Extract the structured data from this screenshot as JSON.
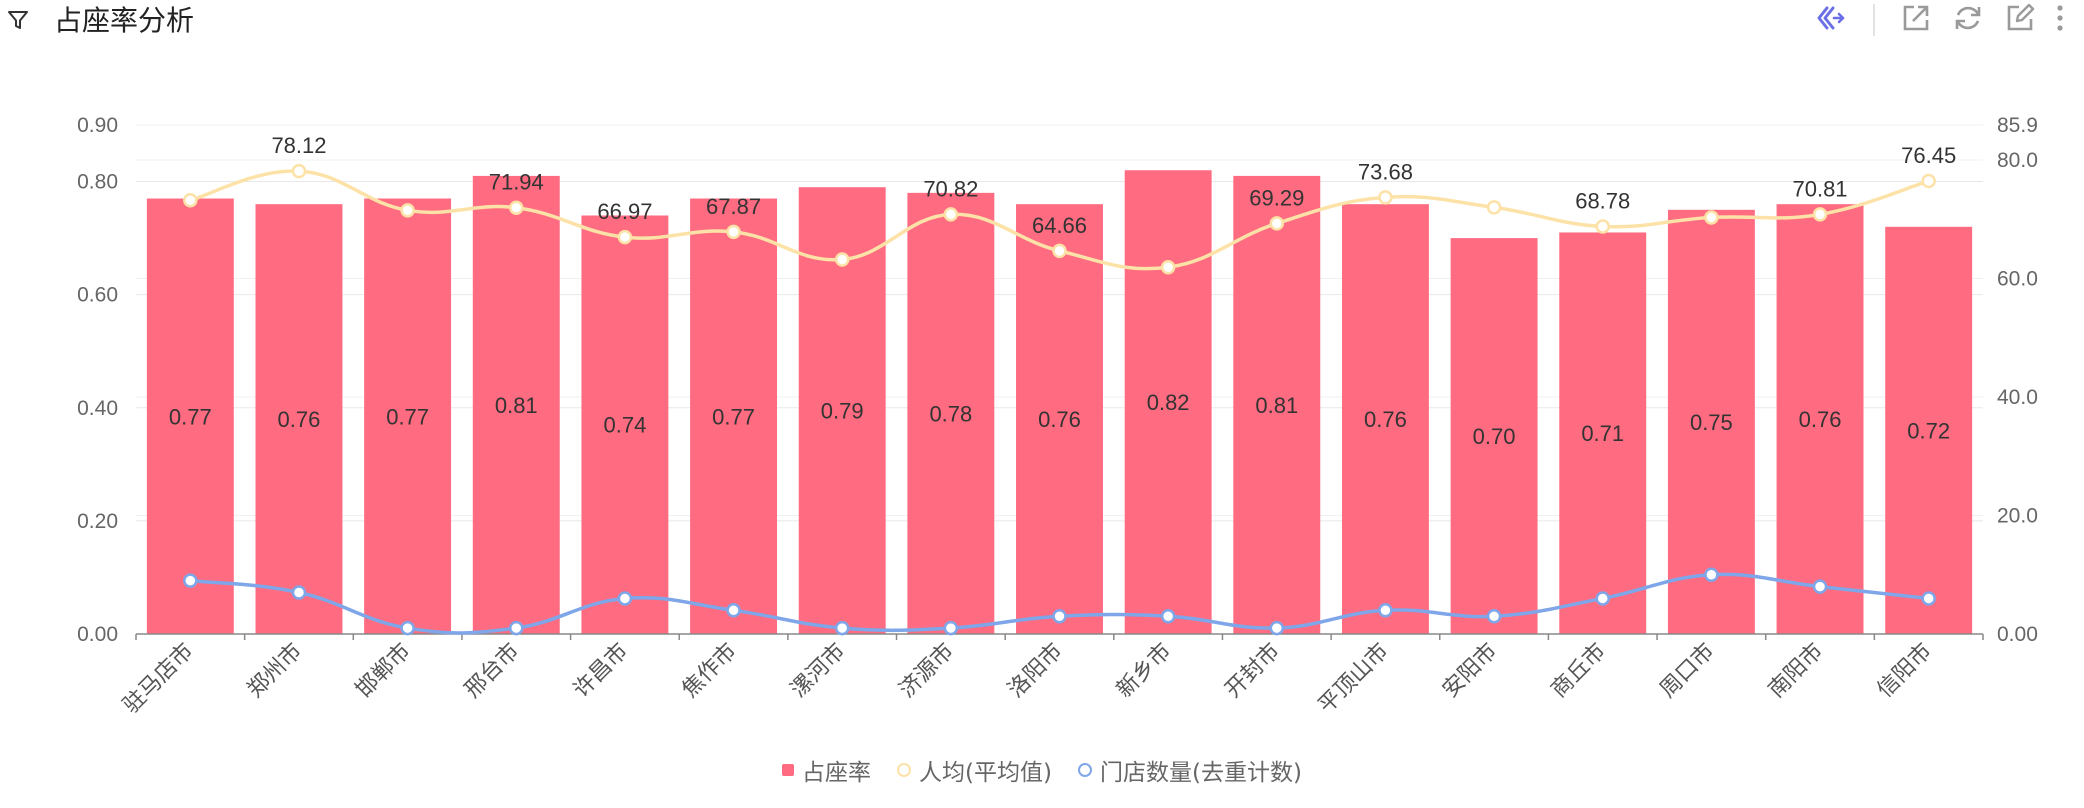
{
  "header": {
    "title": "占座率分析",
    "icons": [
      "filter-icon",
      "ai-assistant-icon",
      "export-icon",
      "refresh-icon",
      "edit-icon",
      "more-icon"
    ]
  },
  "colors": {
    "bar": "#ff6b81",
    "avg": "#fde2a8",
    "stores": "#7ea6e8",
    "ai": "#6b6fe6",
    "tools": "#9a9a9a"
  },
  "chart_data": {
    "type": "bar",
    "categories": [
      "驻马店市",
      "郑州市",
      "邯郸市",
      "邢台市",
      "许昌市",
      "焦作市",
      "漯河市",
      "济源市",
      "洛阳市",
      "新乡市",
      "开封市",
      "平顶山市",
      "安阳市",
      "商丘市",
      "周口市",
      "南阳市",
      "信阳市"
    ],
    "series": [
      {
        "name": "占座率",
        "type": "bar",
        "axis": "left",
        "values": [
          0.77,
          0.76,
          0.77,
          0.81,
          0.74,
          0.77,
          0.79,
          0.78,
          0.76,
          0.82,
          0.81,
          0.76,
          0.7,
          0.71,
          0.75,
          0.76,
          0.72
        ],
        "labels": [
          "0.77",
          "0.76",
          "0.77",
          "0.81",
          "0.74",
          "0.77",
          "0.79",
          "0.78",
          "0.76",
          "0.82",
          "0.81",
          "0.76",
          "0.70",
          "0.71",
          "0.75",
          "0.76",
          "0.72"
        ]
      },
      {
        "name": "人均(平均值)",
        "type": "line",
        "axis": "right",
        "values": [
          73.2,
          78.12,
          71.5,
          71.94,
          66.97,
          67.87,
          63.2,
          70.82,
          64.66,
          61.9,
          69.29,
          73.68,
          72.0,
          68.78,
          70.3,
          70.81,
          76.45
        ],
        "labels": [
          "",
          "78.12",
          "",
          "71.94",
          "66.97",
          "67.87",
          "",
          "70.82",
          "64.66",
          "",
          "69.29",
          "73.68",
          "",
          "68.78",
          "",
          "70.81",
          "76.45"
        ]
      },
      {
        "name": "门店数量(去重计数)",
        "type": "line",
        "axis": "right",
        "values": [
          9,
          7,
          1,
          1,
          6,
          4,
          1,
          1,
          3,
          3,
          1,
          4,
          3,
          6,
          10,
          8,
          6
        ]
      }
    ],
    "left_axis": {
      "ticks": [
        0,
        0.2,
        0.4,
        0.6,
        0.8,
        0.9
      ],
      "tick_labels": [
        "0.00",
        "0.20",
        "0.40",
        "0.60",
        "0.80",
        "0.90"
      ],
      "ylim": [
        0,
        0.9
      ]
    },
    "right_axis": {
      "ticks": [
        0,
        20,
        40,
        60,
        80,
        85.9
      ],
      "tick_labels": [
        "0.00",
        "20.0",
        "40.0",
        "60.0",
        "80.0",
        "85.9"
      ],
      "ylim": [
        0,
        85.9
      ]
    },
    "legend": [
      "占座率",
      "人均(平均值)",
      "门店数量(去重计数)"
    ],
    "legend_position": "bottom-center",
    "grid": true
  }
}
